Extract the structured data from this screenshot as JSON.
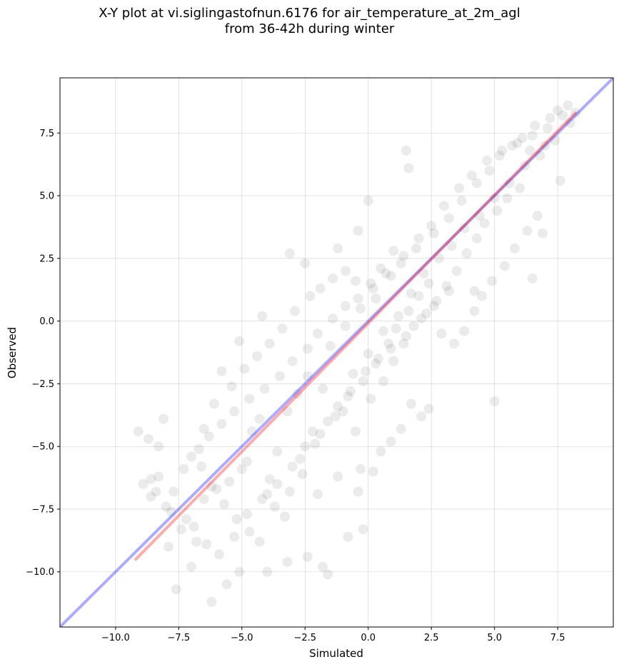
{
  "chart_data": {
    "type": "scatter",
    "title_line1": "X-Y plot at vi.siglingastofnun.6176 for air_temperature_at_2m_agl",
    "title_line2": "from 36-42h during winter",
    "xlabel": "Simulated",
    "ylabel": "Observed",
    "xlim": [
      -12.2,
      9.7
    ],
    "ylim": [
      -12.2,
      9.7
    ],
    "xticks": [
      -10.0,
      -7.5,
      -5.0,
      -2.5,
      0.0,
      2.5,
      5.0,
      7.5
    ],
    "yticks": [
      -10.0,
      -7.5,
      -5.0,
      -2.5,
      0.0,
      2.5,
      5.0,
      7.5
    ],
    "xtick_labels": [
      "−10.0",
      "−7.5",
      "−5.0",
      "−2.5",
      "0.0",
      "2.5",
      "5.0",
      "7.5"
    ],
    "ytick_labels": [
      "−10.0",
      "−7.5",
      "−5.0",
      "−2.5",
      "0.0",
      "2.5",
      "5.0",
      "7.5"
    ],
    "grid": true,
    "point_color": "#000000",
    "point_alpha": 0.08,
    "series": [
      {
        "values": [
          [
            -7.8,
            -7.6
          ],
          [
            -7.4,
            -8.3
          ],
          [
            -7.9,
            -9.0
          ],
          [
            -8.4,
            -6.8
          ],
          [
            -7.0,
            -9.8
          ],
          [
            -6.8,
            -8.8
          ],
          [
            -6.5,
            -7.1
          ],
          [
            -6.0,
            -6.7
          ],
          [
            -5.5,
            -6.4
          ],
          [
            -5.0,
            -5.9
          ],
          [
            -4.6,
            -4.4
          ],
          [
            -4.8,
            -5.6
          ],
          [
            -4.3,
            -3.9
          ],
          [
            -4.0,
            -6.9
          ],
          [
            -3.6,
            -5.2
          ],
          [
            -3.2,
            -3.6
          ],
          [
            -2.8,
            -2.9
          ],
          [
            -2.4,
            -2.2
          ],
          [
            -2.2,
            -4.4
          ],
          [
            -2.6,
            -6.1
          ],
          [
            -1.8,
            -2.7
          ],
          [
            -1.5,
            -1.0
          ],
          [
            -1.2,
            -3.4
          ],
          [
            -0.9,
            -0.2
          ],
          [
            -0.6,
            -2.1
          ],
          [
            -0.3,
            0.5
          ],
          [
            0.0,
            -1.3
          ],
          [
            0.3,
            0.9
          ],
          [
            0.6,
            -0.4
          ],
          [
            0.9,
            1.8
          ],
          [
            1.2,
            0.2
          ],
          [
            1.4,
            2.6
          ],
          [
            1.7,
            1.1
          ],
          [
            2.0,
            3.3
          ],
          [
            2.2,
            1.9
          ],
          [
            2.5,
            3.8
          ],
          [
            2.8,
            2.5
          ],
          [
            3.0,
            4.6
          ],
          [
            3.3,
            3.0
          ],
          [
            3.6,
            5.3
          ],
          [
            3.8,
            3.7
          ],
          [
            4.1,
            5.8
          ],
          [
            4.4,
            4.2
          ],
          [
            4.7,
            6.4
          ],
          [
            5.0,
            4.9
          ],
          [
            5.3,
            6.8
          ],
          [
            5.6,
            5.5
          ],
          [
            5.9,
            7.1
          ],
          [
            6.2,
            6.2
          ],
          [
            6.5,
            7.4
          ],
          [
            6.8,
            6.6
          ],
          [
            7.1,
            7.7
          ],
          [
            7.4,
            7.2
          ],
          [
            7.7,
            8.2
          ],
          [
            8.0,
            7.9
          ],
          [
            7.6,
            5.6
          ],
          [
            6.9,
            3.5
          ],
          [
            6.5,
            1.7
          ],
          [
            5.0,
            -3.2
          ],
          [
            4.2,
            1.2
          ],
          [
            1.5,
            6.8
          ],
          [
            1.6,
            6.1
          ],
          [
            0.0,
            4.8
          ],
          [
            -0.4,
            3.6
          ],
          [
            -1.2,
            2.9
          ],
          [
            -2.5,
            2.3
          ],
          [
            -3.1,
            2.7
          ],
          [
            -4.2,
            0.2
          ],
          [
            -5.1,
            -0.8
          ],
          [
            -5.8,
            -2.0
          ],
          [
            -6.1,
            -3.3
          ],
          [
            -6.5,
            -4.3
          ],
          [
            -7.0,
            -5.4
          ],
          [
            -8.1,
            -3.9
          ],
          [
            -9.1,
            -4.4
          ],
          [
            -8.7,
            -4.7
          ],
          [
            -8.3,
            -5.0
          ],
          [
            -8.6,
            -6.3
          ],
          [
            -8.6,
            -7.0
          ],
          [
            -8.0,
            -7.4
          ],
          [
            -7.6,
            -10.7
          ],
          [
            -6.2,
            -11.2
          ],
          [
            -5.6,
            -10.5
          ],
          [
            -5.1,
            -10.0
          ],
          [
            -4.0,
            -10.0
          ],
          [
            -3.2,
            -9.6
          ],
          [
            -2.4,
            -9.4
          ],
          [
            -1.8,
            -9.8
          ],
          [
            -1.6,
            -10.1
          ],
          [
            -0.2,
            -8.3
          ],
          [
            -0.8,
            -8.6
          ],
          [
            -0.4,
            -6.8
          ],
          [
            -0.3,
            -5.9
          ],
          [
            0.2,
            -6.0
          ],
          [
            0.5,
            -5.2
          ],
          [
            0.9,
            -4.8
          ],
          [
            1.3,
            -4.3
          ],
          [
            1.7,
            -3.3
          ],
          [
            2.1,
            -3.8
          ],
          [
            2.4,
            -3.5
          ],
          [
            -3.9,
            -6.3
          ],
          [
            -3.3,
            -7.8
          ],
          [
            -2.0,
            -6.9
          ],
          [
            -1.2,
            -6.2
          ],
          [
            -0.5,
            -4.4
          ],
          [
            0.1,
            -3.1
          ],
          [
            0.6,
            -2.4
          ],
          [
            1.0,
            -1.6
          ],
          [
            1.4,
            -0.9
          ],
          [
            1.8,
            -0.2
          ],
          [
            2.3,
            0.3
          ],
          [
            2.7,
            0.8
          ],
          [
            3.1,
            1.4
          ],
          [
            3.5,
            2.0
          ],
          [
            3.9,
            2.7
          ],
          [
            4.3,
            3.3
          ],
          [
            4.6,
            3.9
          ],
          [
            5.1,
            4.4
          ],
          [
            5.5,
            4.9
          ],
          [
            6.0,
            5.3
          ],
          [
            -6.6,
            -5.8
          ],
          [
            -6.2,
            -6.6
          ],
          [
            -5.7,
            -7.3
          ],
          [
            -5.2,
            -7.9
          ],
          [
            -4.7,
            -8.4
          ],
          [
            -4.3,
            -8.8
          ],
          [
            -3.7,
            -7.4
          ],
          [
            -3.1,
            -6.8
          ],
          [
            -2.7,
            -5.5
          ],
          [
            -2.1,
            -4.9
          ],
          [
            -1.6,
            -4.0
          ],
          [
            -1.0,
            -3.6
          ],
          [
            -0.7,
            -2.8
          ],
          [
            -0.1,
            -2.0
          ],
          [
            0.4,
            -1.5
          ],
          [
            0.8,
            -0.9
          ],
          [
            1.1,
            -0.3
          ],
          [
            1.6,
            0.4
          ],
          [
            2.0,
            1.0
          ],
          [
            2.4,
            1.5
          ],
          [
            -5.4,
            -2.6
          ],
          [
            -4.9,
            -1.9
          ],
          [
            -4.4,
            -1.4
          ],
          [
            -3.9,
            -0.9
          ],
          [
            -3.4,
            -0.3
          ],
          [
            -2.9,
            0.4
          ],
          [
            -2.3,
            1.0
          ],
          [
            -1.9,
            1.3
          ],
          [
            -1.4,
            1.7
          ],
          [
            -0.9,
            2.0
          ],
          [
            -0.5,
            1.6
          ],
          [
            0.2,
            1.3
          ],
          [
            0.7,
            1.9
          ],
          [
            1.3,
            2.3
          ],
          [
            1.9,
            2.9
          ],
          [
            2.6,
            3.5
          ],
          [
            3.2,
            4.1
          ],
          [
            3.7,
            4.8
          ],
          [
            4.3,
            5.5
          ],
          [
            4.8,
            6.0
          ],
          [
            5.2,
            6.6
          ],
          [
            5.7,
            7.0
          ],
          [
            6.1,
            7.3
          ],
          [
            6.6,
            7.8
          ],
          [
            7.2,
            8.1
          ],
          [
            7.5,
            8.4
          ],
          [
            7.9,
            8.6
          ],
          [
            8.2,
            8.3
          ],
          [
            7.0,
            7.0
          ],
          [
            6.4,
            6.8
          ],
          [
            2.9,
            -0.5
          ],
          [
            3.4,
            -0.9
          ],
          [
            3.8,
            -0.4
          ],
          [
            4.2,
            0.4
          ],
          [
            4.5,
            1.0
          ],
          [
            4.9,
            1.6
          ],
          [
            5.4,
            2.2
          ],
          [
            5.8,
            2.9
          ],
          [
            6.3,
            3.6
          ],
          [
            6.7,
            4.2
          ],
          [
            -7.2,
            -7.9
          ],
          [
            -6.9,
            -8.2
          ],
          [
            -6.4,
            -8.9
          ],
          [
            -5.9,
            -9.3
          ],
          [
            -5.3,
            -8.6
          ],
          [
            -4.8,
            -7.7
          ],
          [
            -4.2,
            -7.1
          ],
          [
            -3.6,
            -6.5
          ],
          [
            -3.0,
            -5.8
          ],
          [
            -2.5,
            -5.0
          ],
          [
            -1.9,
            -4.5
          ],
          [
            -1.3,
            -3.8
          ],
          [
            -0.8,
            -3.0
          ],
          [
            -0.2,
            -2.4
          ],
          [
            0.3,
            -1.7
          ],
          [
            0.9,
            -1.1
          ],
          [
            1.5,
            -0.6
          ],
          [
            2.1,
            0.1
          ],
          [
            2.6,
            0.6
          ],
          [
            3.2,
            1.2
          ],
          [
            -8.9,
            -6.5
          ],
          [
            -8.3,
            -6.2
          ],
          [
            -7.7,
            -6.8
          ],
          [
            -7.3,
            -5.9
          ],
          [
            -6.7,
            -5.1
          ],
          [
            -6.3,
            -4.6
          ],
          [
            -5.8,
            -4.1
          ],
          [
            -5.3,
            -3.6
          ],
          [
            -4.7,
            -3.1
          ],
          [
            -4.1,
            -2.7
          ],
          [
            -3.5,
            -2.2
          ],
          [
            -3.0,
            -1.6
          ],
          [
            -2.4,
            -1.1
          ],
          [
            -2.0,
            -0.5
          ],
          [
            -1.4,
            0.1
          ],
          [
            -0.9,
            0.6
          ],
          [
            -0.4,
            0.9
          ],
          [
            0.1,
            1.5
          ],
          [
            0.5,
            2.1
          ],
          [
            1.0,
            2.8
          ]
        ]
      }
    ],
    "lines": [
      {
        "name": "identity",
        "color": "#0000ff",
        "alpha": 0.33,
        "x": [
          -12.2,
          9.7
        ],
        "y": [
          -12.2,
          9.7
        ]
      },
      {
        "name": "fit",
        "color": "#ff0000",
        "alpha": 0.33,
        "x": [
          -9.2,
          8.2
        ],
        "y": [
          -9.5,
          8.3
        ]
      }
    ]
  }
}
